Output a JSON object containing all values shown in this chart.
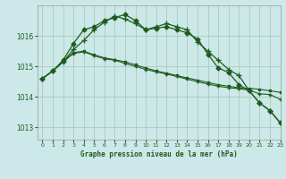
{
  "title": "Graphe pression niveau de la mer (hPa)",
  "background_color": "#cce8e8",
  "grid_color": "#aaccbb",
  "line_color": "#1e5c1e",
  "xlim": [
    -0.5,
    23
  ],
  "ylim": [
    1012.6,
    1017.0
  ],
  "yticks": [
    1013,
    1014,
    1015,
    1016
  ],
  "xtick_labels": [
    "0",
    "1",
    "2",
    "3",
    "4",
    "5",
    "6",
    "7",
    "8",
    "9",
    "10",
    "11",
    "12",
    "13",
    "14",
    "15",
    "16",
    "17",
    "18",
    "19",
    "20",
    "21",
    "22",
    "23"
  ],
  "series": [
    {
      "x": [
        0,
        1,
        2,
        3,
        4,
        5,
        6,
        7,
        8,
        9,
        10,
        11,
        12,
        13,
        14,
        15,
        16,
        17,
        18,
        19,
        20,
        21,
        22,
        23
      ],
      "y": [
        1014.6,
        1014.85,
        1015.2,
        1015.75,
        1016.2,
        1016.3,
        1016.5,
        1016.6,
        1016.7,
        1016.5,
        1016.2,
        1016.25,
        1016.3,
        1016.2,
        1016.1,
        1015.9,
        1015.4,
        1014.95,
        1014.8,
        1014.4,
        1014.2,
        1013.8,
        1013.55,
        1013.15
      ],
      "marker": "D",
      "markersize": 2.5,
      "linewidth": 0.9
    },
    {
      "x": [
        0,
        1,
        2,
        3,
        4,
        5,
        6,
        7,
        8,
        9,
        10,
        11,
        12,
        13,
        14,
        15,
        16,
        17,
        18,
        19,
        20,
        21,
        22,
        23
      ],
      "y": [
        1014.6,
        1014.85,
        1015.15,
        1015.55,
        1015.85,
        1016.2,
        1016.45,
        1016.65,
        1016.55,
        1016.4,
        1016.2,
        1016.3,
        1016.4,
        1016.3,
        1016.2,
        1015.8,
        1015.5,
        1015.2,
        1014.9,
        1014.7,
        1014.2,
        1013.8,
        1013.55,
        1013.15
      ],
      "marker": "+",
      "markersize": 5,
      "linewidth": 0.9
    },
    {
      "x": [
        0,
        1,
        2,
        3,
        4,
        5,
        6,
        7,
        8,
        9,
        10,
        11,
        12,
        13,
        14,
        15,
        16,
        17,
        18,
        19,
        20,
        21,
        22,
        23
      ],
      "y": [
        1014.6,
        1014.85,
        1015.15,
        1015.45,
        1015.5,
        1015.38,
        1015.28,
        1015.22,
        1015.15,
        1015.05,
        1014.95,
        1014.85,
        1014.78,
        1014.7,
        1014.62,
        1014.55,
        1014.47,
        1014.4,
        1014.35,
        1014.3,
        1014.28,
        1014.25,
        1014.2,
        1014.15
      ],
      "marker": "s",
      "markersize": 2,
      "linewidth": 0.8
    },
    {
      "x": [
        0,
        1,
        2,
        3,
        4,
        5,
        6,
        7,
        8,
        9,
        10,
        11,
        12,
        13,
        14,
        15,
        16,
        17,
        18,
        19,
        20,
        21,
        22,
        23
      ],
      "y": [
        1014.6,
        1014.85,
        1015.15,
        1015.42,
        1015.48,
        1015.35,
        1015.25,
        1015.2,
        1015.1,
        1015.0,
        1014.9,
        1014.82,
        1014.75,
        1014.67,
        1014.58,
        1014.5,
        1014.42,
        1014.35,
        1014.3,
        1014.27,
        1014.22,
        1014.1,
        1014.08,
        1013.92
      ],
      "marker": "+",
      "markersize": 3,
      "linewidth": 0.8
    }
  ]
}
